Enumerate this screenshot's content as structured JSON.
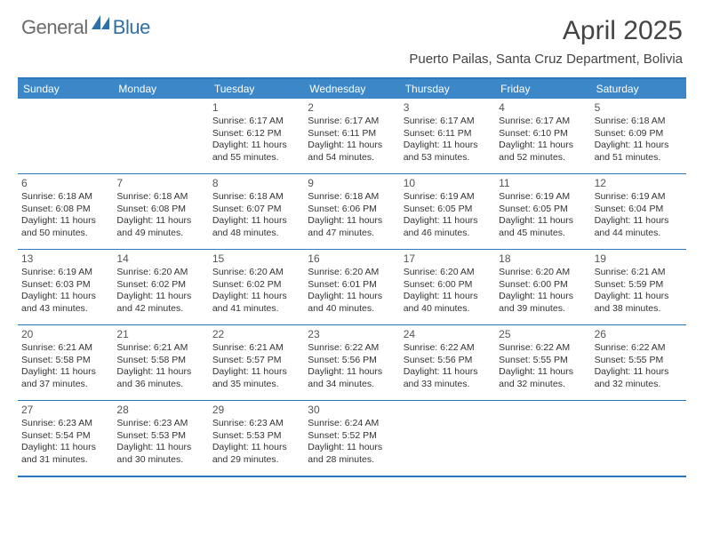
{
  "logo": {
    "general": "General",
    "blue": "Blue"
  },
  "title": {
    "month": "April 2025",
    "location": "Puerto Pailas, Santa Cruz Department, Bolivia"
  },
  "colors": {
    "accent": "#3b87c8",
    "border": "#2b79bd",
    "text": "#333333",
    "logo_gray": "#6b6b6b",
    "logo_blue": "#2f6fa8"
  },
  "dow": [
    "Sunday",
    "Monday",
    "Tuesday",
    "Wednesday",
    "Thursday",
    "Friday",
    "Saturday"
  ],
  "weeks": [
    [
      null,
      null,
      {
        "d": "1",
        "sr": "6:17 AM",
        "ss": "6:12 PM",
        "dl": "11 hours and 55 minutes."
      },
      {
        "d": "2",
        "sr": "6:17 AM",
        "ss": "6:11 PM",
        "dl": "11 hours and 54 minutes."
      },
      {
        "d": "3",
        "sr": "6:17 AM",
        "ss": "6:11 PM",
        "dl": "11 hours and 53 minutes."
      },
      {
        "d": "4",
        "sr": "6:17 AM",
        "ss": "6:10 PM",
        "dl": "11 hours and 52 minutes."
      },
      {
        "d": "5",
        "sr": "6:18 AM",
        "ss": "6:09 PM",
        "dl": "11 hours and 51 minutes."
      }
    ],
    [
      {
        "d": "6",
        "sr": "6:18 AM",
        "ss": "6:08 PM",
        "dl": "11 hours and 50 minutes."
      },
      {
        "d": "7",
        "sr": "6:18 AM",
        "ss": "6:08 PM",
        "dl": "11 hours and 49 minutes."
      },
      {
        "d": "8",
        "sr": "6:18 AM",
        "ss": "6:07 PM",
        "dl": "11 hours and 48 minutes."
      },
      {
        "d": "9",
        "sr": "6:18 AM",
        "ss": "6:06 PM",
        "dl": "11 hours and 47 minutes."
      },
      {
        "d": "10",
        "sr": "6:19 AM",
        "ss": "6:05 PM",
        "dl": "11 hours and 46 minutes."
      },
      {
        "d": "11",
        "sr": "6:19 AM",
        "ss": "6:05 PM",
        "dl": "11 hours and 45 minutes."
      },
      {
        "d": "12",
        "sr": "6:19 AM",
        "ss": "6:04 PM",
        "dl": "11 hours and 44 minutes."
      }
    ],
    [
      {
        "d": "13",
        "sr": "6:19 AM",
        "ss": "6:03 PM",
        "dl": "11 hours and 43 minutes."
      },
      {
        "d": "14",
        "sr": "6:20 AM",
        "ss": "6:02 PM",
        "dl": "11 hours and 42 minutes."
      },
      {
        "d": "15",
        "sr": "6:20 AM",
        "ss": "6:02 PM",
        "dl": "11 hours and 41 minutes."
      },
      {
        "d": "16",
        "sr": "6:20 AM",
        "ss": "6:01 PM",
        "dl": "11 hours and 40 minutes."
      },
      {
        "d": "17",
        "sr": "6:20 AM",
        "ss": "6:00 PM",
        "dl": "11 hours and 40 minutes."
      },
      {
        "d": "18",
        "sr": "6:20 AM",
        "ss": "6:00 PM",
        "dl": "11 hours and 39 minutes."
      },
      {
        "d": "19",
        "sr": "6:21 AM",
        "ss": "5:59 PM",
        "dl": "11 hours and 38 minutes."
      }
    ],
    [
      {
        "d": "20",
        "sr": "6:21 AM",
        "ss": "5:58 PM",
        "dl": "11 hours and 37 minutes."
      },
      {
        "d": "21",
        "sr": "6:21 AM",
        "ss": "5:58 PM",
        "dl": "11 hours and 36 minutes."
      },
      {
        "d": "22",
        "sr": "6:21 AM",
        "ss": "5:57 PM",
        "dl": "11 hours and 35 minutes."
      },
      {
        "d": "23",
        "sr": "6:22 AM",
        "ss": "5:56 PM",
        "dl": "11 hours and 34 minutes."
      },
      {
        "d": "24",
        "sr": "6:22 AM",
        "ss": "5:56 PM",
        "dl": "11 hours and 33 minutes."
      },
      {
        "d": "25",
        "sr": "6:22 AM",
        "ss": "5:55 PM",
        "dl": "11 hours and 32 minutes."
      },
      {
        "d": "26",
        "sr": "6:22 AM",
        "ss": "5:55 PM",
        "dl": "11 hours and 32 minutes."
      }
    ],
    [
      {
        "d": "27",
        "sr": "6:23 AM",
        "ss": "5:54 PM",
        "dl": "11 hours and 31 minutes."
      },
      {
        "d": "28",
        "sr": "6:23 AM",
        "ss": "5:53 PM",
        "dl": "11 hours and 30 minutes."
      },
      {
        "d": "29",
        "sr": "6:23 AM",
        "ss": "5:53 PM",
        "dl": "11 hours and 29 minutes."
      },
      {
        "d": "30",
        "sr": "6:24 AM",
        "ss": "5:52 PM",
        "dl": "11 hours and 28 minutes."
      },
      null,
      null,
      null
    ]
  ],
  "labels": {
    "sunrise": "Sunrise:",
    "sunset": "Sunset:",
    "daylight": "Daylight:"
  }
}
